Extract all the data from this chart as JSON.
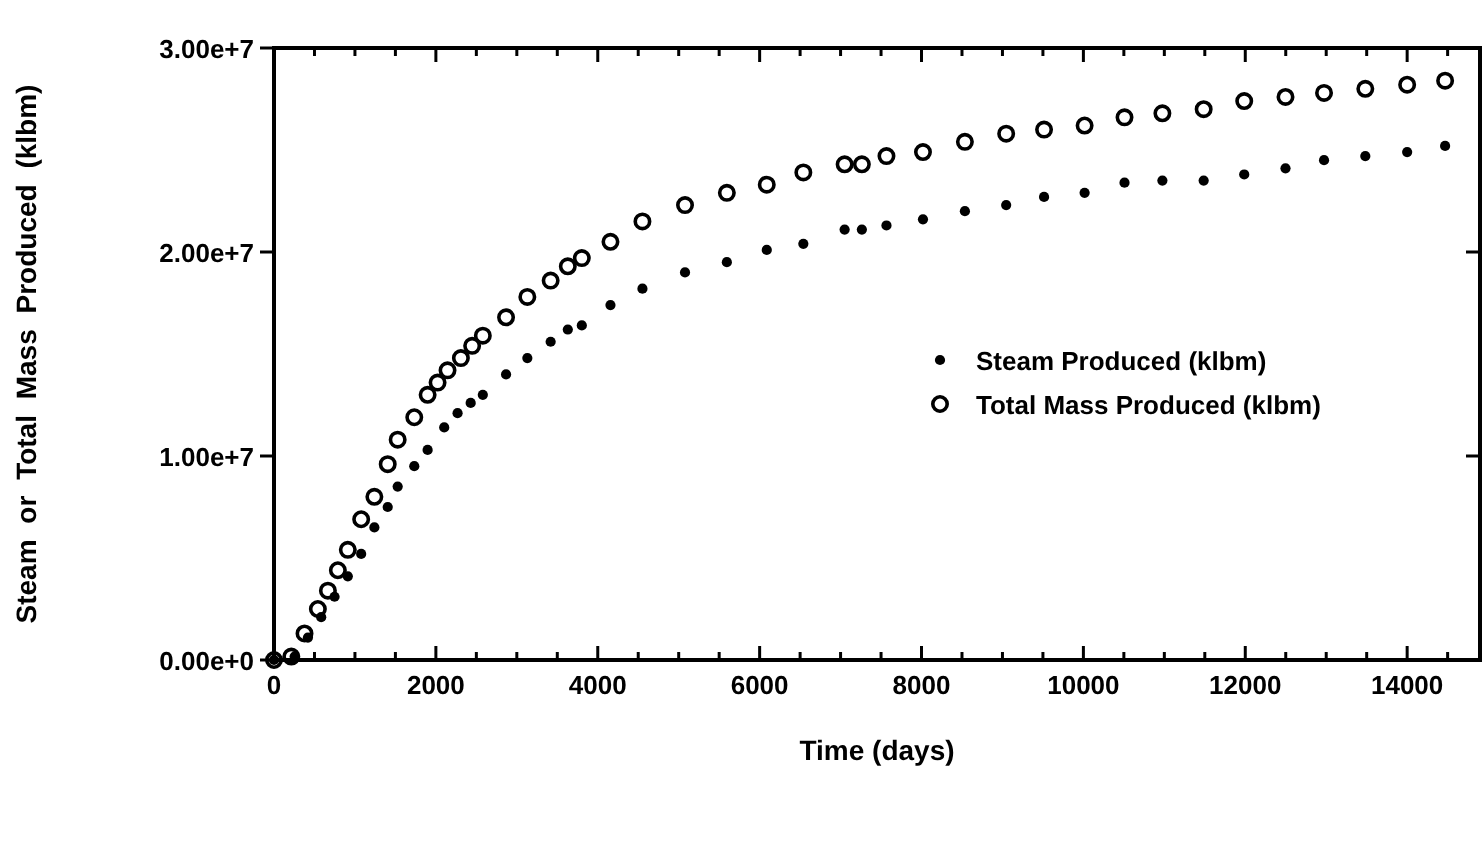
{
  "chart_data": {
    "type": "scatter",
    "xlabel": "Time  (days)",
    "ylabel": "Steam or Total Mass Produced (klbm)",
    "xlim": [
      0,
      14900
    ],
    "ylim": [
      0,
      30000000
    ],
    "xticks": [
      0,
      {
        "value": 500,
        "label": null
      },
      {
        "value": 1000,
        "label": null
      },
      {
        "value": 1500,
        "label": null
      },
      2000,
      {
        "value": 2500,
        "label": null
      },
      {
        "value": 3000,
        "label": null
      },
      {
        "value": 3500,
        "label": null
      },
      4000,
      {
        "value": 4500,
        "label": null
      },
      {
        "value": 5000,
        "label": null
      },
      {
        "value": 5500,
        "label": null
      },
      6000,
      {
        "value": 6500,
        "label": null
      },
      {
        "value": 7000,
        "label": null
      },
      {
        "value": 7500,
        "label": null
      },
      8000,
      {
        "value": 8500,
        "label": null
      },
      {
        "value": 9000,
        "label": null
      },
      {
        "value": 9500,
        "label": null
      },
      10000,
      {
        "value": 10500,
        "label": null
      },
      {
        "value": 11000,
        "label": null
      },
      {
        "value": 11500,
        "label": null
      },
      12000,
      {
        "value": 12500,
        "label": null
      },
      {
        "value": 13000,
        "label": null
      },
      {
        "value": 13500,
        "label": null
      },
      14000,
      {
        "value": 14500,
        "label": null
      }
    ],
    "yticks": [
      {
        "value": 0,
        "label": "0.00e+0"
      },
      {
        "value": 10000000,
        "label": "1.00e+7"
      },
      {
        "value": 20000000,
        "label": "2.00e+7"
      },
      {
        "value": 30000000,
        "label": "3.00e+7"
      }
    ],
    "legend": "right",
    "marker": "circle",
    "grid": false,
    "series": [
      {
        "name": "Steam Produced (klbm)",
        "color": "#000000",
        "x": [
          0,
          255,
          419,
          583,
          748,
          912,
          1077,
          1240,
          1405,
          1528,
          1733,
          1898,
          2103,
          2268,
          2430,
          2580,
          2867,
          3130,
          3418,
          3630,
          3803,
          4157,
          4552,
          5078,
          5595,
          6088,
          6540,
          7050,
          7263,
          7567,
          8018,
          8536,
          9046,
          9514,
          10015,
          10508,
          10976,
          11486,
          11987,
          12497,
          12973,
          13483,
          14000,
          14469
        ],
        "values": [
          0,
          170000,
          1100000,
          2100000,
          3100000,
          4100000,
          5200000,
          6500000,
          7500000,
          8500000,
          9500000,
          10300000,
          11400000,
          12100000,
          12600000,
          13000000,
          14000000,
          14800000,
          15600000,
          16200000,
          16400000,
          17400000,
          18200000,
          19000000,
          19500000,
          20100000,
          20400000,
          21100000,
          21100000,
          21300000,
          21600000,
          22000000,
          22300000,
          22700000,
          22900000,
          23400000,
          23500000,
          23500000,
          23800000,
          24100000,
          24500000,
          24700000,
          24900000,
          25200000
        ]
      },
      {
        "name": "Total Mass Produced (klbm)",
        "color": "#000000",
        "x": [
          0,
          214,
          377,
          542,
          666,
          789,
          912,
          1077,
          1240,
          1405,
          1528,
          1733,
          1898,
          2021,
          2144,
          2309,
          2448,
          2580,
          2867,
          3130,
          3418,
          3630,
          3803,
          4157,
          4552,
          5078,
          5595,
          6088,
          6540,
          7050,
          7263,
          7567,
          8018,
          8536,
          9046,
          9514,
          10015,
          10508,
          10976,
          11486,
          11987,
          12497,
          12973,
          13483,
          14000,
          14469
        ],
        "values": [
          0,
          170000,
          1300000,
          2500000,
          3400000,
          4400000,
          5400000,
          6900000,
          8000000,
          9600000,
          10800000,
          11900000,
          13000000,
          13600000,
          14200000,
          14800000,
          15400000,
          15900000,
          16800000,
          17800000,
          18600000,
          19300000,
          19700000,
          20500000,
          21500000,
          22300000,
          22900000,
          23300000,
          23900000,
          24300000,
          24300000,
          24700000,
          24900000,
          25400000,
          25800000,
          26000000,
          26200000,
          26600000,
          26800000,
          27000000,
          27400000,
          27600000,
          27800000,
          28000000,
          28200000,
          28400000
        ]
      }
    ]
  }
}
